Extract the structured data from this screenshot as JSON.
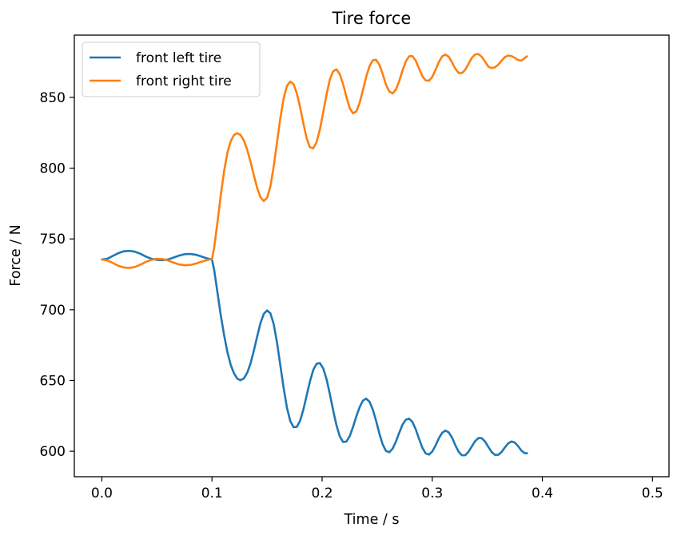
{
  "chart_data": {
    "type": "line",
    "title": "Tire force",
    "xlabel": "Time / s",
    "ylabel": "Force / N",
    "xlim": [
      -0.025,
      0.515
    ],
    "ylim": [
      582,
      894
    ],
    "xticks": [
      0.0,
      0.1,
      0.2,
      0.3,
      0.4,
      0.5
    ],
    "xtick_labels": [
      "0.0",
      "0.1",
      "0.2",
      "0.3",
      "0.4",
      "0.5"
    ],
    "yticks": [
      600,
      650,
      700,
      750,
      800,
      850
    ],
    "ytick_labels": [
      "600",
      "650",
      "700",
      "750",
      "800",
      "850"
    ],
    "grid": false,
    "legend": "top-left",
    "series": [
      {
        "name": "front left tire",
        "color": "#1f77b4",
        "points": [
          [
            0.0,
            735.5
          ],
          [
            0.005,
            736
          ],
          [
            0.01,
            738
          ],
          [
            0.015,
            740
          ],
          [
            0.02,
            741.3
          ],
          [
            0.025,
            741.6
          ],
          [
            0.03,
            741
          ],
          [
            0.035,
            739.5
          ],
          [
            0.04,
            737.5
          ],
          [
            0.045,
            736
          ],
          [
            0.05,
            735.2
          ],
          [
            0.055,
            735
          ],
          [
            0.06,
            735.5
          ],
          [
            0.065,
            736.8
          ],
          [
            0.07,
            738.2
          ],
          [
            0.075,
            739.2
          ],
          [
            0.08,
            739.4
          ],
          [
            0.085,
            738.9
          ],
          [
            0.09,
            737.7
          ],
          [
            0.095,
            736.4
          ],
          [
            0.1,
            735.5
          ],
          [
            0.102,
            728
          ],
          [
            0.105,
            712
          ],
          [
            0.108,
            696
          ],
          [
            0.111,
            682
          ],
          [
            0.114,
            670
          ],
          [
            0.117,
            661
          ],
          [
            0.12,
            655
          ],
          [
            0.123,
            651.2
          ],
          [
            0.126,
            650.2
          ],
          [
            0.129,
            651.5
          ],
          [
            0.132,
            655.5
          ],
          [
            0.135,
            662
          ],
          [
            0.138,
            671
          ],
          [
            0.141,
            681
          ],
          [
            0.144,
            690.5
          ],
          [
            0.147,
            697
          ],
          [
            0.15,
            699.5
          ],
          [
            0.153,
            697.5
          ],
          [
            0.156,
            690
          ],
          [
            0.159,
            677
          ],
          [
            0.162,
            661
          ],
          [
            0.165,
            645
          ],
          [
            0.168,
            631
          ],
          [
            0.171,
            621.5
          ],
          [
            0.174,
            617
          ],
          [
            0.177,
            617.2
          ],
          [
            0.18,
            621.5
          ],
          [
            0.183,
            629.5
          ],
          [
            0.186,
            639.5
          ],
          [
            0.189,
            649.5
          ],
          [
            0.192,
            657.5
          ],
          [
            0.195,
            661.8
          ],
          [
            0.198,
            662.3
          ],
          [
            0.201,
            658.5
          ],
          [
            0.204,
            651
          ],
          [
            0.207,
            640.5
          ],
          [
            0.21,
            629
          ],
          [
            0.213,
            618.5
          ],
          [
            0.216,
            610.5
          ],
          [
            0.219,
            606.6
          ],
          [
            0.222,
            606.8
          ],
          [
            0.225,
            610.5
          ],
          [
            0.228,
            617
          ],
          [
            0.231,
            624.5
          ],
          [
            0.234,
            631
          ],
          [
            0.237,
            635.7
          ],
          [
            0.24,
            637.2
          ],
          [
            0.243,
            635
          ],
          [
            0.246,
            629.5
          ],
          [
            0.249,
            621.5
          ],
          [
            0.252,
            612.5
          ],
          [
            0.255,
            604.8
          ],
          [
            0.258,
            600.2
          ],
          [
            0.261,
            599.3
          ],
          [
            0.264,
            601.8
          ],
          [
            0.267,
            606.8
          ],
          [
            0.27,
            613
          ],
          [
            0.273,
            618.8
          ],
          [
            0.276,
            622.3
          ],
          [
            0.279,
            623
          ],
          [
            0.282,
            620.7
          ],
          [
            0.285,
            615.5
          ],
          [
            0.288,
            608.8
          ],
          [
            0.291,
            602.5
          ],
          [
            0.294,
            598.5
          ],
          [
            0.297,
            597.6
          ],
          [
            0.3,
            599.8
          ],
          [
            0.303,
            604
          ],
          [
            0.306,
            609.2
          ],
          [
            0.309,
            613
          ],
          [
            0.312,
            614.6
          ],
          [
            0.315,
            613.3
          ],
          [
            0.318,
            609.6
          ],
          [
            0.321,
            604.2
          ],
          [
            0.324,
            599.6
          ],
          [
            0.327,
            597.1
          ],
          [
            0.33,
            597.2
          ],
          [
            0.333,
            599.7
          ],
          [
            0.336,
            603.5
          ],
          [
            0.339,
            607.2
          ],
          [
            0.342,
            609.3
          ],
          [
            0.345,
            609.2
          ],
          [
            0.348,
            606.8
          ],
          [
            0.351,
            603
          ],
          [
            0.354,
            599.4
          ],
          [
            0.357,
            597.4
          ],
          [
            0.36,
            597.5
          ],
          [
            0.363,
            599.5
          ],
          [
            0.366,
            602.7
          ],
          [
            0.369,
            605.6
          ],
          [
            0.372,
            606.9
          ],
          [
            0.375,
            606.1
          ],
          [
            0.378,
            603.6
          ],
          [
            0.381,
            600.4
          ],
          [
            0.384,
            598.6
          ],
          [
            0.386,
            598.6
          ]
        ]
      },
      {
        "name": "front right tire",
        "color": "#ff7f0e",
        "points": [
          [
            0.0,
            735.5
          ],
          [
            0.005,
            734.8
          ],
          [
            0.01,
            733
          ],
          [
            0.015,
            731
          ],
          [
            0.02,
            729.8
          ],
          [
            0.025,
            729.5
          ],
          [
            0.03,
            730.2
          ],
          [
            0.035,
            731.8
          ],
          [
            0.04,
            733.8
          ],
          [
            0.045,
            735.2
          ],
          [
            0.05,
            736
          ],
          [
            0.055,
            735.8
          ],
          [
            0.06,
            734.8
          ],
          [
            0.065,
            733.3
          ],
          [
            0.07,
            732
          ],
          [
            0.075,
            731.4
          ],
          [
            0.08,
            731.6
          ],
          [
            0.085,
            732.5
          ],
          [
            0.09,
            733.8
          ],
          [
            0.095,
            735
          ],
          [
            0.1,
            735.8
          ],
          [
            0.102,
            744
          ],
          [
            0.105,
            762
          ],
          [
            0.108,
            781
          ],
          [
            0.111,
            798
          ],
          [
            0.114,
            811
          ],
          [
            0.117,
            819
          ],
          [
            0.12,
            823.5
          ],
          [
            0.123,
            824.7
          ],
          [
            0.126,
            823.4
          ],
          [
            0.129,
            819.5
          ],
          [
            0.132,
            813
          ],
          [
            0.135,
            804.5
          ],
          [
            0.138,
            795
          ],
          [
            0.141,
            786
          ],
          [
            0.144,
            779.5
          ],
          [
            0.147,
            776.8
          ],
          [
            0.15,
            779
          ],
          [
            0.153,
            787
          ],
          [
            0.156,
            801
          ],
          [
            0.159,
            818
          ],
          [
            0.162,
            835
          ],
          [
            0.165,
            849
          ],
          [
            0.168,
            858
          ],
          [
            0.171,
            861.2
          ],
          [
            0.174,
            859.5
          ],
          [
            0.177,
            853
          ],
          [
            0.18,
            843
          ],
          [
            0.183,
            831.5
          ],
          [
            0.186,
            821
          ],
          [
            0.189,
            814.7
          ],
          [
            0.192,
            814
          ],
          [
            0.195,
            818.5
          ],
          [
            0.198,
            827.5
          ],
          [
            0.201,
            839.5
          ],
          [
            0.204,
            852
          ],
          [
            0.207,
            862.5
          ],
          [
            0.21,
            868.5
          ],
          [
            0.213,
            869.8
          ],
          [
            0.216,
            866.5
          ],
          [
            0.219,
            859.5
          ],
          [
            0.222,
            850.5
          ],
          [
            0.225,
            842.5
          ],
          [
            0.228,
            838.8
          ],
          [
            0.231,
            840
          ],
          [
            0.234,
            846
          ],
          [
            0.237,
            855
          ],
          [
            0.24,
            864.5
          ],
          [
            0.243,
            872
          ],
          [
            0.246,
            876.2
          ],
          [
            0.249,
            876.6
          ],
          [
            0.252,
            873
          ],
          [
            0.255,
            866.5
          ],
          [
            0.258,
            859
          ],
          [
            0.261,
            854.2
          ],
          [
            0.264,
            852.8
          ],
          [
            0.267,
            855.5
          ],
          [
            0.27,
            861.5
          ],
          [
            0.273,
            869
          ],
          [
            0.276,
            875.5
          ],
          [
            0.279,
            879
          ],
          [
            0.282,
            879.2
          ],
          [
            0.285,
            876
          ],
          [
            0.288,
            870.5
          ],
          [
            0.291,
            865
          ],
          [
            0.294,
            862
          ],
          [
            0.297,
            861.8
          ],
          [
            0.3,
            864.5
          ],
          [
            0.303,
            869.5
          ],
          [
            0.306,
            875
          ],
          [
            0.309,
            879
          ],
          [
            0.312,
            880.3
          ],
          [
            0.315,
            878.7
          ],
          [
            0.318,
            874.7
          ],
          [
            0.321,
            870.2
          ],
          [
            0.324,
            867.3
          ],
          [
            0.327,
            867.2
          ],
          [
            0.33,
            869.6
          ],
          [
            0.333,
            873.8
          ],
          [
            0.336,
            878
          ],
          [
            0.339,
            880.4
          ],
          [
            0.342,
            880.6
          ],
          [
            0.345,
            878.6
          ],
          [
            0.348,
            875.2
          ],
          [
            0.351,
            871.7
          ],
          [
            0.354,
            870.7
          ],
          [
            0.357,
            871.3
          ],
          [
            0.36,
            873.2
          ],
          [
            0.363,
            876
          ],
          [
            0.366,
            878.5
          ],
          [
            0.369,
            879.6
          ],
          [
            0.372,
            879.2
          ],
          [
            0.375,
            877.9
          ],
          [
            0.378,
            876.4
          ],
          [
            0.381,
            876
          ],
          [
            0.384,
            877.8
          ],
          [
            0.386,
            879
          ]
        ]
      }
    ]
  }
}
